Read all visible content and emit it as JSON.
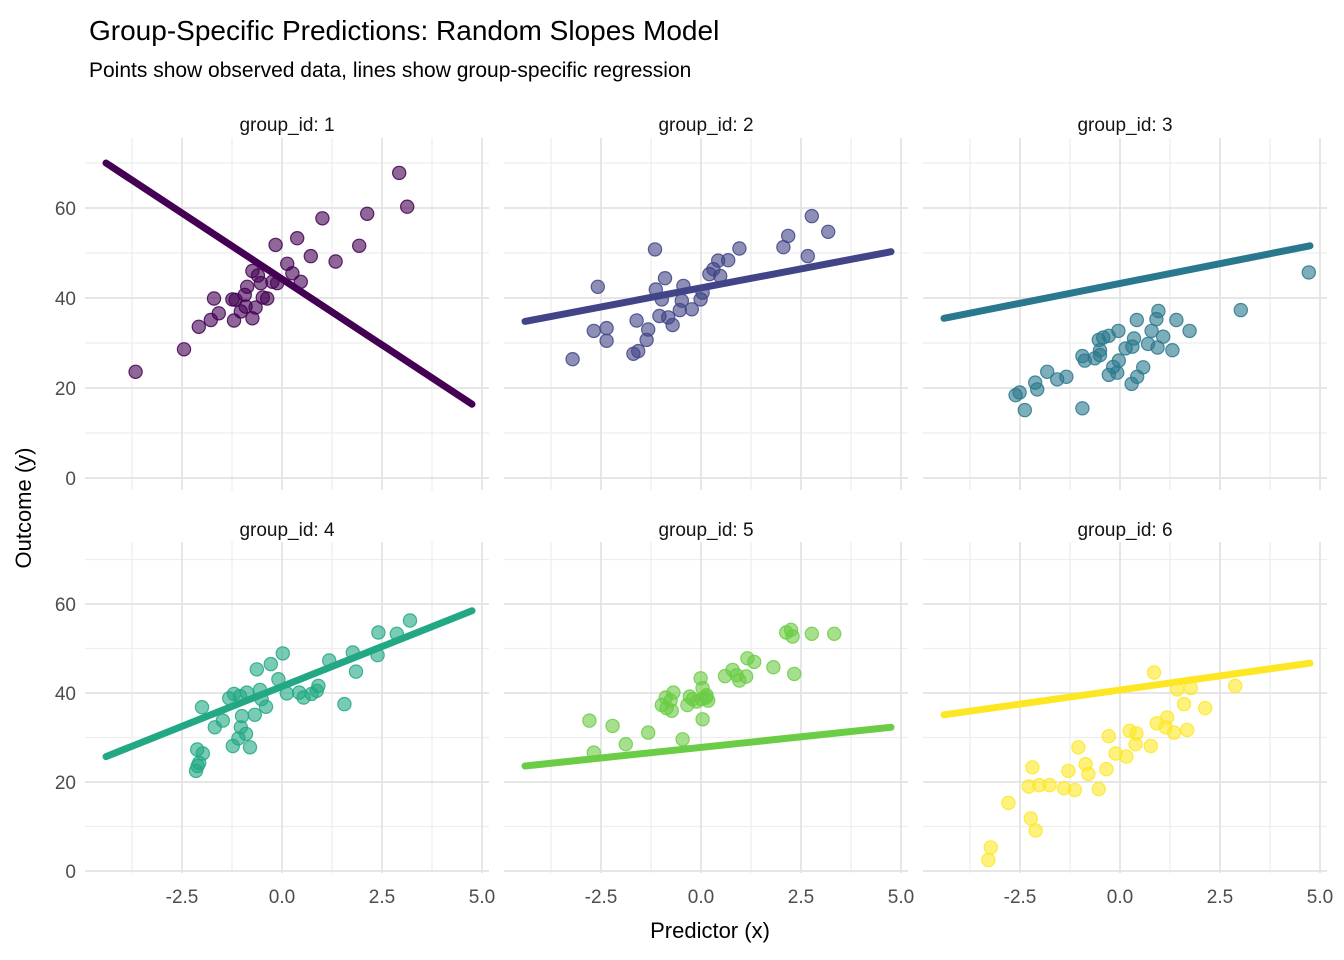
{
  "header": {
    "title": "Group-Specific Predictions: Random Slopes Model",
    "subtitle": "Points show observed data, lines show group-specific regression"
  },
  "axes": {
    "x_title": "Predictor (x)",
    "y_title": "Outcome (y)"
  },
  "chart_data": {
    "type": "scatter",
    "title": "Group-Specific Predictions: Random Slopes Model",
    "subtitle": "Points show observed data, lines show group-specific regression",
    "xlabel": "Predictor (x)",
    "ylabel": "Outcome (y)",
    "xlim": [
      -4.9,
      5.2
    ],
    "ylim": [
      -2.7,
      75.6
    ],
    "grid": true,
    "legend_position": "none",
    "point_alpha": 0.6,
    "x_ticks": {
      "values": [
        -2.5,
        0,
        2.5,
        5
      ],
      "labels": [
        "-2.5",
        "0.0",
        "2.5",
        "5.0"
      ]
    },
    "y_ticks": {
      "values": [
        0,
        20,
        40,
        60
      ],
      "labels": [
        "0",
        "20",
        "40",
        "60"
      ]
    },
    "x_minor": [
      -3.75,
      -1.25,
      1.25,
      3.75
    ],
    "y_minor": [
      10,
      30,
      50,
      70
    ],
    "facets": [
      {
        "label": "group_id: 1",
        "color": "#440154",
        "line": {
          "x": [
            -4.4,
            4.75
          ],
          "y": [
            70.0,
            16.4
          ]
        },
        "points": [
          [
            2.93,
            67.8
          ],
          [
            3.13,
            60.3
          ],
          [
            2.13,
            58.7
          ],
          [
            1.01,
            57.7
          ],
          [
            1.93,
            51.6
          ],
          [
            1.34,
            48.1
          ],
          [
            0.38,
            53.3
          ],
          [
            -0.16,
            51.8
          ],
          [
            0.72,
            49.3
          ],
          [
            0.13,
            47.6
          ],
          [
            0.26,
            45.5
          ],
          [
            0.47,
            43.6
          ],
          [
            -0.12,
            43.3
          ],
          [
            -0.24,
            43.6
          ],
          [
            -0.53,
            43.3
          ],
          [
            -0.74,
            46.0
          ],
          [
            -0.6,
            45.0
          ],
          [
            -0.87,
            42.5
          ],
          [
            -0.48,
            40.1
          ],
          [
            -0.93,
            40.7
          ],
          [
            -1.16,
            39.6
          ],
          [
            -0.37,
            39.9
          ],
          [
            -0.66,
            37.9
          ],
          [
            -0.91,
            38.1
          ],
          [
            -1.03,
            37.0
          ],
          [
            -1.7,
            39.9
          ],
          [
            -1.24,
            39.7
          ],
          [
            -1.58,
            36.6
          ],
          [
            -0.74,
            35.5
          ],
          [
            -1.2,
            35.0
          ],
          [
            -2.08,
            33.6
          ],
          [
            -1.78,
            35.1
          ],
          [
            -2.45,
            28.6
          ],
          [
            -3.66,
            23.6
          ]
        ]
      },
      {
        "label": "group_id: 2",
        "color": "#414487",
        "line": {
          "x": [
            -4.4,
            4.75
          ],
          "y": [
            34.8,
            50.3
          ]
        },
        "points": [
          [
            2.77,
            58.2
          ],
          [
            3.18,
            54.7
          ],
          [
            2.18,
            53.8
          ],
          [
            2.06,
            51.3
          ],
          [
            0.96,
            51.0
          ],
          [
            -1.15,
            50.8
          ],
          [
            2.67,
            49.3
          ],
          [
            0.68,
            48.4
          ],
          [
            0.43,
            48.3
          ],
          [
            0.31,
            46.4
          ],
          [
            0.21,
            45.3
          ],
          [
            0.48,
            44.9
          ],
          [
            -0.9,
            44.4
          ],
          [
            -2.58,
            42.5
          ],
          [
            -1.13,
            41.9
          ],
          [
            -0.44,
            42.7
          ],
          [
            0.04,
            41.2
          ],
          [
            -0.98,
            39.7
          ],
          [
            -0.48,
            39.4
          ],
          [
            -0.01,
            39.7
          ],
          [
            -0.23,
            37.5
          ],
          [
            -0.53,
            37.3
          ],
          [
            -1.04,
            36.0
          ],
          [
            -0.82,
            35.7
          ],
          [
            -0.71,
            34.0
          ],
          [
            -1.61,
            35.0
          ],
          [
            -1.32,
            33.0
          ],
          [
            -2.68,
            32.7
          ],
          [
            -2.36,
            33.3
          ],
          [
            -1.36,
            30.7
          ],
          [
            -2.36,
            30.5
          ],
          [
            -1.57,
            28.2
          ],
          [
            -1.69,
            27.6
          ],
          [
            -3.21,
            26.4
          ]
        ]
      },
      {
        "label": "group_id: 3",
        "color": "#2a788e",
        "line": {
          "x": [
            -4.4,
            4.75
          ],
          "y": [
            35.5,
            51.6
          ]
        },
        "points": [
          [
            4.72,
            45.7
          ],
          [
            3.02,
            37.3
          ],
          [
            0.96,
            37.1
          ],
          [
            0.91,
            35.3
          ],
          [
            0.42,
            35.1
          ],
          [
            1.41,
            35.1
          ],
          [
            1.74,
            32.7
          ],
          [
            0.79,
            32.7
          ],
          [
            1.08,
            31.4
          ],
          [
            0.35,
            31.0
          ],
          [
            -0.04,
            32.7
          ],
          [
            -0.28,
            31.6
          ],
          [
            -0.53,
            30.7
          ],
          [
            -0.42,
            31.2
          ],
          [
            0.7,
            29.8
          ],
          [
            0.94,
            29.0
          ],
          [
            1.31,
            28.4
          ],
          [
            0.31,
            29.2
          ],
          [
            0.14,
            28.8
          ],
          [
            -0.5,
            28.4
          ],
          [
            -0.5,
            27.3
          ],
          [
            -0.63,
            26.6
          ],
          [
            -0.03,
            26.1
          ],
          [
            -0.17,
            24.7
          ],
          [
            -0.07,
            23.4
          ],
          [
            -0.28,
            22.9
          ],
          [
            0.58,
            24.6
          ],
          [
            0.43,
            22.5
          ],
          [
            0.29,
            20.9
          ],
          [
            -0.94,
            27.1
          ],
          [
            -0.88,
            26.1
          ],
          [
            -1.82,
            23.6
          ],
          [
            -1.57,
            21.9
          ],
          [
            -1.34,
            22.5
          ],
          [
            -2.12,
            21.2
          ],
          [
            -2.07,
            19.7
          ],
          [
            -2.51,
            19.0
          ],
          [
            -2.61,
            18.4
          ],
          [
            -2.38,
            15.1
          ],
          [
            -0.94,
            15.5
          ]
        ]
      },
      {
        "label": "group_id: 4",
        "color": "#22a884",
        "line": {
          "x": [
            -4.4,
            4.75
          ],
          "y": [
            25.7,
            58.5
          ]
        },
        "points": [
          [
            3.2,
            56.3
          ],
          [
            2.41,
            53.6
          ],
          [
            2.87,
            53.3
          ],
          [
            0.02,
            48.9
          ],
          [
            2.39,
            48.5
          ],
          [
            1.77,
            49.1
          ],
          [
            -0.28,
            46.5
          ],
          [
            1.18,
            47.3
          ],
          [
            -0.63,
            45.3
          ],
          [
            1.85,
            44.8
          ],
          [
            -0.09,
            43.1
          ],
          [
            0.91,
            41.6
          ],
          [
            -0.55,
            40.7
          ],
          [
            -0.88,
            40.1
          ],
          [
            -1.2,
            39.8
          ],
          [
            0.12,
            39.9
          ],
          [
            0.43,
            40.1
          ],
          [
            0.74,
            39.8
          ],
          [
            0.87,
            40.5
          ],
          [
            -1.05,
            39.3
          ],
          [
            -1.32,
            38.8
          ],
          [
            -0.51,
            38.6
          ],
          [
            0.54,
            39.0
          ],
          [
            -2.0,
            36.8
          ],
          [
            1.56,
            37.5
          ],
          [
            -0.4,
            36.9
          ],
          [
            -1.0,
            34.8
          ],
          [
            -0.68,
            35.1
          ],
          [
            -1.48,
            33.8
          ],
          [
            -1.68,
            32.3
          ],
          [
            -1.03,
            32.3
          ],
          [
            -0.9,
            30.8
          ],
          [
            -1.09,
            29.8
          ],
          [
            -1.23,
            28.1
          ],
          [
            -0.8,
            27.8
          ],
          [
            -2.12,
            27.3
          ],
          [
            -1.98,
            26.4
          ],
          [
            -2.07,
            24.3
          ],
          [
            -2.15,
            22.5
          ],
          [
            -2.11,
            23.6
          ]
        ]
      },
      {
        "label": "group_id: 5",
        "color": "#6bcc45",
        "line": {
          "x": [
            -4.4,
            4.75
          ],
          "y": [
            23.6,
            32.3
          ]
        },
        "points": [
          [
            2.13,
            53.6
          ],
          [
            2.25,
            54.2
          ],
          [
            2.29,
            52.7
          ],
          [
            2.77,
            53.3
          ],
          [
            3.33,
            53.3
          ],
          [
            1.16,
            47.8
          ],
          [
            1.33,
            47.0
          ],
          [
            1.81,
            45.8
          ],
          [
            2.33,
            44.3
          ],
          [
            0.79,
            45.2
          ],
          [
            0.6,
            43.8
          ],
          [
            0.89,
            44.0
          ],
          [
            1.13,
            43.7
          ],
          [
            -0.01,
            43.3
          ],
          [
            0.96,
            42.8
          ],
          [
            0.04,
            41.1
          ],
          [
            0.14,
            39.5
          ],
          [
            -0.69,
            40.1
          ],
          [
            -0.88,
            39.0
          ],
          [
            -0.76,
            38.3
          ],
          [
            -0.28,
            39.2
          ],
          [
            -0.21,
            38.6
          ],
          [
            -0.11,
            38.1
          ],
          [
            0.02,
            38.6
          ],
          [
            0.13,
            39.0
          ],
          [
            0.18,
            38.3
          ],
          [
            -0.98,
            37.3
          ],
          [
            -0.86,
            36.6
          ],
          [
            -0.73,
            36.0
          ],
          [
            -0.34,
            37.3
          ],
          [
            0.04,
            34.1
          ],
          [
            -2.79,
            33.8
          ],
          [
            -2.21,
            32.6
          ],
          [
            -1.32,
            31.1
          ],
          [
            -1.88,
            28.5
          ],
          [
            -0.46,
            29.6
          ],
          [
            -2.68,
            26.6
          ]
        ]
      },
      {
        "label": "group_id: 6",
        "color": "#fde725",
        "line": {
          "x": [
            -4.4,
            4.75
          ],
          "y": [
            35.1,
            46.7
          ]
        },
        "points": [
          [
            0.85,
            44.6
          ],
          [
            1.43,
            40.8
          ],
          [
            1.77,
            41.1
          ],
          [
            2.88,
            41.6
          ],
          [
            1.6,
            37.5
          ],
          [
            2.13,
            36.6
          ],
          [
            1.18,
            34.5
          ],
          [
            0.92,
            33.2
          ],
          [
            1.14,
            32.3
          ],
          [
            1.35,
            31.1
          ],
          [
            1.68,
            31.7
          ],
          [
            -0.28,
            30.3
          ],
          [
            0.24,
            31.5
          ],
          [
            0.39,
            28.5
          ],
          [
            0.41,
            30.9
          ],
          [
            0.77,
            28.1
          ],
          [
            0.16,
            25.7
          ],
          [
            -0.11,
            26.4
          ],
          [
            -1.04,
            27.8
          ],
          [
            -0.86,
            24.0
          ],
          [
            -0.79,
            21.8
          ],
          [
            -0.34,
            22.9
          ],
          [
            -0.53,
            18.4
          ],
          [
            -1.29,
            22.5
          ],
          [
            -2.19,
            23.3
          ],
          [
            -2.28,
            19.0
          ],
          [
            -2.02,
            19.3
          ],
          [
            -1.76,
            19.3
          ],
          [
            -1.4,
            18.6
          ],
          [
            -1.13,
            18.2
          ],
          [
            -2.79,
            15.3
          ],
          [
            -2.23,
            11.8
          ],
          [
            -2.11,
            9.1
          ],
          [
            -3.23,
            5.3
          ],
          [
            -3.29,
            2.5
          ]
        ]
      }
    ],
    "style": {
      "grid_major_color": "#e3e3e3",
      "grid_minor_color": "#eeeeee",
      "tick_label_color": "#4d4d4d",
      "strip_label_color": "#141414",
      "background": "#ffffff"
    }
  }
}
